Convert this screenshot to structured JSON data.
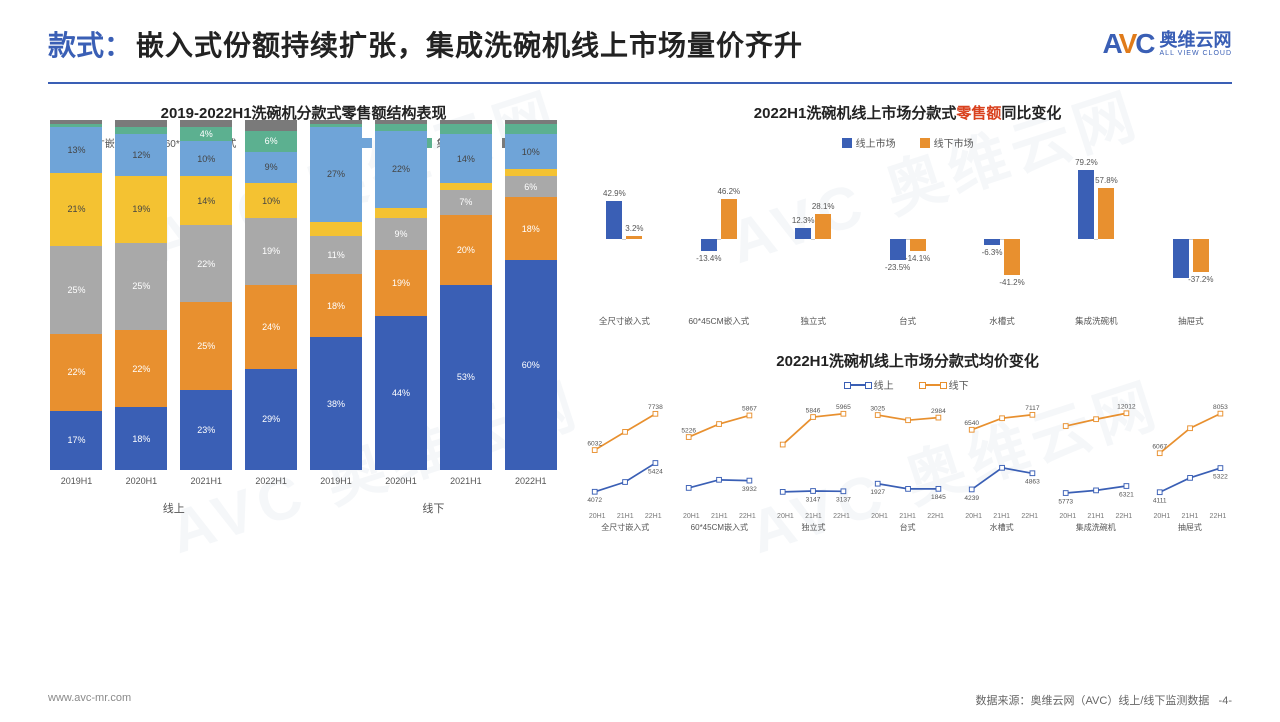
{
  "header": {
    "prefix": "款式：",
    "main": "嵌入式份额持续扩张，集成洗碗机线上市场量价齐升",
    "logo_cn": "奥维云网",
    "logo_en": "ALL VIEW CLOUD"
  },
  "colors": {
    "blue": "#3a5fb5",
    "orange": "#e8902f",
    "gray": "#a9a9a9",
    "yellow": "#f4c232",
    "lightblue": "#6fa4d8",
    "teal": "#5cb090",
    "darkgray": "#7a7a7a",
    "red": "#d9411e"
  },
  "left_chart": {
    "title": "2019-2022H1洗碗机分款式零售额结构表现",
    "legend": [
      {
        "label": "全尺寸嵌入式",
        "key": "blue"
      },
      {
        "label": "60*45CM嵌入式",
        "key": "orange"
      },
      {
        "label": "独立式",
        "key": "gray"
      },
      {
        "label": "台式",
        "key": "yellow"
      },
      {
        "label": "水槽式",
        "key": "lightblue"
      },
      {
        "label": "集成洗碗机",
        "key": "teal"
      },
      {
        "label": "抽屉式",
        "key": "darkgray"
      }
    ],
    "groups": [
      {
        "label": "线上",
        "cols": [
          {
            "x": "2019H1",
            "seg": [
              {
                "c": "blue",
                "v": 17,
                "t": "17%"
              },
              {
                "c": "orange",
                "v": 22,
                "t": "22%"
              },
              {
                "c": "gray",
                "v": 25,
                "t": "25%"
              },
              {
                "c": "yellow",
                "v": 21,
                "t": "21%"
              },
              {
                "c": "lightblue",
                "v": 13,
                "t": "13%"
              },
              {
                "c": "teal",
                "v": 1,
                "t": ""
              },
              {
                "c": "darkgray",
                "v": 1,
                "t": ""
              }
            ]
          },
          {
            "x": "2020H1",
            "seg": [
              {
                "c": "blue",
                "v": 18,
                "t": "18%"
              },
              {
                "c": "orange",
                "v": 22,
                "t": "22%"
              },
              {
                "c": "gray",
                "v": 25,
                "t": "25%"
              },
              {
                "c": "yellow",
                "v": 19,
                "t": "19%"
              },
              {
                "c": "lightblue",
                "v": 12,
                "t": "12%"
              },
              {
                "c": "teal",
                "v": 2,
                "t": ""
              },
              {
                "c": "darkgray",
                "v": 2,
                "t": ""
              }
            ]
          },
          {
            "x": "2021H1",
            "seg": [
              {
                "c": "blue",
                "v": 23,
                "t": "23%"
              },
              {
                "c": "orange",
                "v": 25,
                "t": "25%"
              },
              {
                "c": "gray",
                "v": 22,
                "t": "22%"
              },
              {
                "c": "yellow",
                "v": 14,
                "t": "14%"
              },
              {
                "c": "lightblue",
                "v": 10,
                "t": "10%"
              },
              {
                "c": "teal",
                "v": 4,
                "t": "4%"
              },
              {
                "c": "darkgray",
                "v": 2,
                "t": ""
              }
            ]
          },
          {
            "x": "2022H1",
            "seg": [
              {
                "c": "blue",
                "v": 29,
                "t": "29%"
              },
              {
                "c": "orange",
                "v": 24,
                "t": "24%"
              },
              {
                "c": "gray",
                "v": 19,
                "t": "19%"
              },
              {
                "c": "yellow",
                "v": 10,
                "t": "10%"
              },
              {
                "c": "lightblue",
                "v": 9,
                "t": "9%"
              },
              {
                "c": "teal",
                "v": 6,
                "t": "6%"
              },
              {
                "c": "darkgray",
                "v": 3,
                "t": ""
              }
            ]
          }
        ]
      },
      {
        "label": "线下",
        "cols": [
          {
            "x": "2019H1",
            "seg": [
              {
                "c": "blue",
                "v": 38,
                "t": "38%"
              },
              {
                "c": "orange",
                "v": 18,
                "t": "18%"
              },
              {
                "c": "gray",
                "v": 11,
                "t": "11%"
              },
              {
                "c": "yellow",
                "v": 4,
                "t": ""
              },
              {
                "c": "lightblue",
                "v": 27,
                "t": "27%"
              },
              {
                "c": "teal",
                "v": 1,
                "t": ""
              },
              {
                "c": "darkgray",
                "v": 1,
                "t": ""
              }
            ]
          },
          {
            "x": "2020H1",
            "seg": [
              {
                "c": "blue",
                "v": 44,
                "t": "44%"
              },
              {
                "c": "orange",
                "v": 19,
                "t": "19%"
              },
              {
                "c": "gray",
                "v": 9,
                "t": "9%"
              },
              {
                "c": "yellow",
                "v": 3,
                "t": ""
              },
              {
                "c": "lightblue",
                "v": 22,
                "t": "22%"
              },
              {
                "c": "teal",
                "v": 2,
                "t": ""
              },
              {
                "c": "darkgray",
                "v": 1,
                "t": ""
              }
            ]
          },
          {
            "x": "2021H1",
            "seg": [
              {
                "c": "blue",
                "v": 53,
                "t": "53%"
              },
              {
                "c": "orange",
                "v": 20,
                "t": "20%"
              },
              {
                "c": "gray",
                "v": 7,
                "t": "7%"
              },
              {
                "c": "yellow",
                "v": 2,
                "t": ""
              },
              {
                "c": "lightblue",
                "v": 14,
                "t": "14%"
              },
              {
                "c": "teal",
                "v": 3,
                "t": ""
              },
              {
                "c": "darkgray",
                "v": 1,
                "t": ""
              }
            ]
          },
          {
            "x": "2022H1",
            "seg": [
              {
                "c": "blue",
                "v": 60,
                "t": "60%"
              },
              {
                "c": "orange",
                "v": 18,
                "t": "18%"
              },
              {
                "c": "gray",
                "v": 6,
                "t": "6%"
              },
              {
                "c": "yellow",
                "v": 2,
                "t": ""
              },
              {
                "c": "lightblue",
                "v": 10,
                "t": "10%"
              },
              {
                "c": "teal",
                "v": 3,
                "t": ""
              },
              {
                "c": "darkgray",
                "v": 1,
                "t": ""
              }
            ]
          }
        ]
      }
    ]
  },
  "right_top": {
    "title_pre": "2022H1洗碗机线上市场分款式",
    "title_red": "零售额",
    "title_post": "同比变化",
    "legend": [
      {
        "label": "线上市场",
        "c": "blue"
      },
      {
        "label": "线下市场",
        "c": "orange"
      }
    ],
    "yrange": 80,
    "cats": [
      {
        "label": "全尺寸嵌入式",
        "a": 42.9,
        "b": 3.2,
        "al": "42.9%",
        "bl": "3.2%"
      },
      {
        "label": "60*45CM嵌入式",
        "a": -13.4,
        "b": 46.2,
        "al": "-13.4%",
        "bl": "46.2%"
      },
      {
        "label": "独立式",
        "a": 12.3,
        "b": 28.1,
        "al": "12.3%",
        "bl": "28.1%"
      },
      {
        "label": "台式",
        "a": -23.5,
        "b": -14.1,
        "al": "-23.5%",
        "bl": "-14.1%"
      },
      {
        "label": "水槽式",
        "a": -6.3,
        "b": -41.2,
        "al": "-6.3%",
        "bl": "-41.2%"
      },
      {
        "label": "集成洗碗机",
        "a": 79.2,
        "b": 57.8,
        "al": "79.2%",
        "bl": "57.8%"
      },
      {
        "label": "抽屉式",
        "a": -45.0,
        "b": -37.2,
        "al": "",
        "bl": "-37.2%"
      }
    ]
  },
  "right_bottom": {
    "title_pre": "2022H1洗碗机线上市场分款式",
    "title_red": "均价",
    "title_post": "变化",
    "legend": [
      {
        "label": "线上",
        "c": "blue"
      },
      {
        "label": "线下",
        "c": "orange"
      }
    ],
    "xticks": [
      "20H1",
      "21H1",
      "22H1"
    ],
    "cats": [
      {
        "label": "全尺寸嵌入式",
        "on": [
          4072,
          4530,
          5424
        ],
        "off": [
          6032,
          6889,
          7738
        ],
        "olbl": [
          "4072",
          "",
          "5424"
        ],
        "flbl": [
          "6032",
          "",
          "7738"
        ]
      },
      {
        "label": "60*45CM嵌入式",
        "on": [
          3715,
          3956,
          3932
        ],
        "off": [
          5226,
          5612,
          5867
        ],
        "olbl": [
          "",
          "",
          "3932"
        ],
        "flbl": [
          "5226",
          "",
          "5867"
        ]
      },
      {
        "label": "独立式",
        "on": [
          3115,
          3147,
          3137
        ],
        "off": [
          4841,
          5846,
          5965
        ],
        "olbl": [
          "",
          "3147",
          "3137"
        ],
        "flbl": [
          "",
          "5846",
          "5965"
        ]
      },
      {
        "label": "台式",
        "on": [
          1927,
          1844,
          1845
        ],
        "off": [
          3025,
          2942,
          2984
        ],
        "olbl": [
          "1927",
          "",
          "1845"
        ],
        "flbl": [
          "3025",
          "",
          "2984"
        ]
      },
      {
        "label": "水槽式",
        "on": [
          4239,
          5073,
          4863
        ],
        "off": [
          6540,
          6985,
          7117
        ],
        "olbl": [
          "4239",
          "",
          "4863"
        ],
        "flbl": [
          "6540",
          "",
          "7117"
        ]
      },
      {
        "label": "集成洗碗机",
        "on": [
          5773,
          5980,
          6321
        ],
        "off": [
          11012,
          11548,
          12012
        ],
        "olbl": [
          "5773",
          "",
          "6321"
        ],
        "flbl": [
          "",
          "",
          "12012"
        ]
      },
      {
        "label": "抽屉式",
        "on": [
          4111,
          4830,
          5322
        ],
        "off": [
          6067,
          7320,
          8053
        ],
        "olbl": [
          "4111",
          "",
          "5322"
        ],
        "flbl": [
          "6067",
          "",
          "8053"
        ]
      }
    ]
  },
  "footer": {
    "url": "www.avc-mr.com",
    "source": "数据来源：奥维云网（AVC）线上/线下监测数据",
    "page": "-4-"
  },
  "watermark": "AVC 奥维云网"
}
